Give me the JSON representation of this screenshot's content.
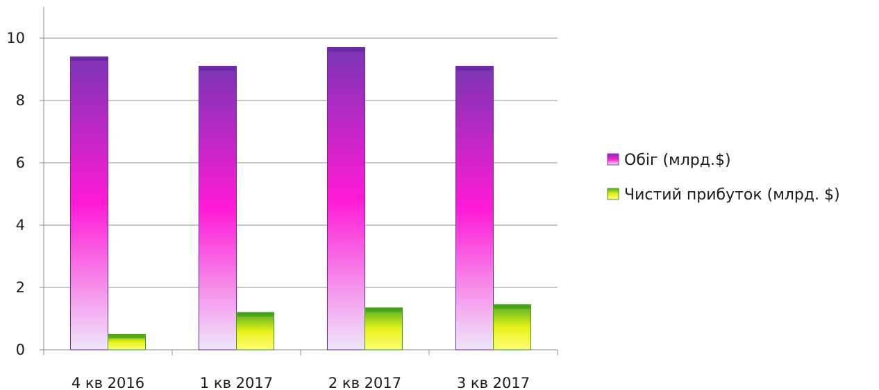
{
  "chart_data": {
    "type": "bar",
    "title": "",
    "xlabel": "",
    "ylabel": "",
    "categories": [
      "4 кв 2016",
      "1 кв 2017",
      "2 кв 2017",
      "3 кв 2017"
    ],
    "series": [
      {
        "name": "Обіг (млрд.$)",
        "values": [
          9.4,
          9.1,
          9.7,
          9.1
        ],
        "color_top": "#7a35b4",
        "color_mid": "#ff1ad6",
        "color_bottom": "#efe6fa"
      },
      {
        "name": "Чистий прибуток (млрд. $)",
        "values": [
          0.5,
          1.2,
          1.35,
          1.45
        ],
        "color_top": "#4caf25",
        "color_mid": "#e6f21a",
        "color_bottom": "#ffff73"
      }
    ],
    "ylim": [
      0,
      11
    ],
    "yticks": [
      0,
      2,
      4,
      6,
      8,
      10
    ],
    "grid": true,
    "legend": "right"
  }
}
